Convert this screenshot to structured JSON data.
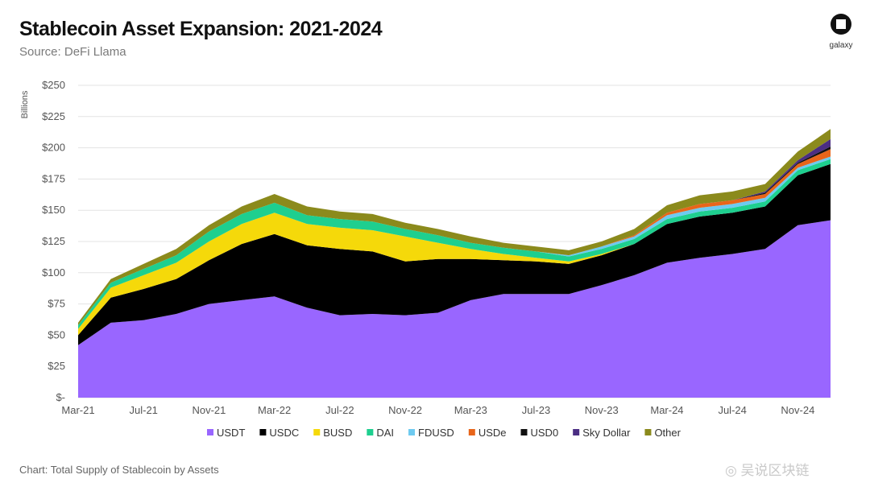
{
  "header": {
    "title": "Stablecoin Asset Expansion: 2021-2024",
    "subtitle": "Source: DeFi Llama"
  },
  "logo": {
    "text": "galaxy"
  },
  "footer": {
    "caption": "Chart: Total Supply of Stablecoin by Assets"
  },
  "watermark": {
    "text": "◎ 吴说区块链"
  },
  "chart_data": {
    "type": "area",
    "stacked": true,
    "ylabel": "Billions",
    "ylim": [
      0,
      250
    ],
    "yticks": [
      0,
      25,
      50,
      75,
      100,
      125,
      150,
      175,
      200,
      225,
      250
    ],
    "ytick_labels": [
      "$-",
      "$25",
      "$50",
      "$75",
      "$100",
      "$125",
      "$150",
      "$175",
      "$200",
      "$225",
      "$250"
    ],
    "xtick_labels": [
      "Mar-21",
      "Jul-21",
      "Nov-21",
      "Mar-22",
      "Jul-22",
      "Nov-22",
      "Mar-23",
      "Jul-23",
      "Nov-23",
      "Mar-24",
      "Jul-24",
      "Nov-24"
    ],
    "grid": true,
    "legend_position": "bottom-center",
    "x": [
      "2021-03",
      "2021-05",
      "2021-07",
      "2021-09",
      "2021-11",
      "2022-01",
      "2022-03",
      "2022-05",
      "2022-07",
      "2022-09",
      "2022-11",
      "2023-01",
      "2023-03",
      "2023-05",
      "2023-07",
      "2023-09",
      "2023-11",
      "2024-01",
      "2024-03",
      "2024-05",
      "2024-07",
      "2024-09",
      "2024-11",
      "2025-01"
    ],
    "series": [
      {
        "name": "USDT",
        "color": "#9966ff",
        "values": [
          42,
          60,
          62,
          67,
          75,
          78,
          81,
          72,
          66,
          67,
          66,
          68,
          78,
          83,
          83,
          83,
          90,
          98,
          108,
          112,
          115,
          119,
          138,
          142
        ]
      },
      {
        "name": "USDC",
        "color": "#000000",
        "values": [
          8,
          20,
          25,
          28,
          35,
          45,
          50,
          50,
          53,
          50,
          43,
          43,
          33,
          27,
          26,
          24,
          24,
          25,
          31,
          33,
          33,
          34,
          40,
          45
        ]
      },
      {
        "name": "BUSD",
        "color": "#f5d90a",
        "values": [
          5,
          8,
          11,
          13,
          15,
          16,
          17,
          17,
          17,
          17,
          20,
          13,
          8,
          5,
          3,
          2,
          1,
          0,
          0,
          0,
          0,
          0,
          0,
          0
        ]
      },
      {
        "name": "DAI",
        "color": "#1ecf8f",
        "values": [
          3,
          4,
          5,
          6,
          8,
          8,
          8,
          7,
          7,
          7,
          6,
          6,
          5,
          5,
          5,
          4,
          4,
          4,
          4,
          4,
          4,
          4,
          4,
          4
        ]
      },
      {
        "name": "FDUSD",
        "color": "#6ecaf0",
        "values": [
          0,
          0,
          0,
          0,
          0,
          0,
          0,
          0,
          0,
          0,
          0,
          0,
          0,
          0,
          0,
          1,
          2,
          2,
          3,
          3,
          3,
          3,
          2,
          2
        ]
      },
      {
        "name": "USDe",
        "color": "#e8651a",
        "values": [
          0,
          0,
          0,
          0,
          0,
          0,
          0,
          0,
          0,
          0,
          0,
          0,
          0,
          0,
          0,
          0,
          0,
          1,
          2,
          3,
          3,
          3,
          3,
          6
        ]
      },
      {
        "name": "USD0",
        "color": "#111111",
        "values": [
          0,
          0,
          0,
          0,
          0,
          0,
          0,
          0,
          0,
          0,
          0,
          0,
          0,
          0,
          0,
          0,
          0,
          0,
          0,
          0,
          0,
          1,
          1,
          2
        ]
      },
      {
        "name": "Sky Dollar",
        "color": "#4b2e83",
        "values": [
          0,
          0,
          0,
          0,
          0,
          0,
          0,
          0,
          0,
          0,
          0,
          0,
          0,
          0,
          0,
          0,
          0,
          0,
          0,
          0,
          0,
          1,
          2,
          6
        ]
      },
      {
        "name": "Other",
        "color": "#8b8a1c",
        "values": [
          2,
          3,
          4,
          5,
          5,
          6,
          7,
          7,
          6,
          6,
          5,
          5,
          5,
          4,
          4,
          4,
          4,
          5,
          6,
          7,
          7,
          6,
          7,
          8
        ]
      }
    ]
  }
}
